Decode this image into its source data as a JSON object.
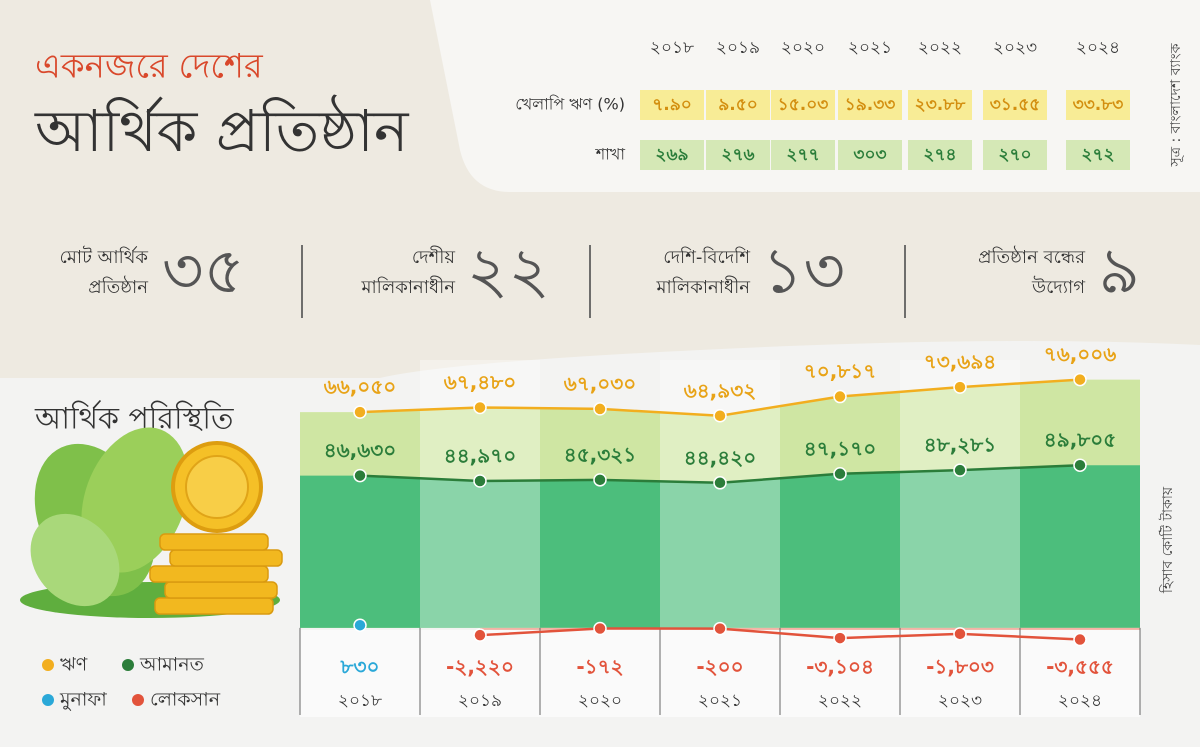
{
  "header": {
    "title_line1": "একনজরে দেশের",
    "title_line2": "আর্থিক প্রতিষ্ঠান",
    "source": "সূত্র : বাংলাদেশ ব্যাংক"
  },
  "table": {
    "columns": [
      "২০১৮",
      "২০১৯",
      "২০২০",
      "২০২১",
      "২০২২",
      "২০২৩",
      "২০২৪"
    ],
    "rows": [
      {
        "label": "খেলাপি ঋণ (%)",
        "cells": [
          "৭.৯০",
          "৯.৫০",
          "১৫.০৩",
          "১৯.৩৩",
          "২৩.৮৮",
          "৩১.৫৫",
          "৩৩.৮৩"
        ]
      },
      {
        "label": "শাখা",
        "cells": [
          "২৬৯",
          "২৭৬",
          "২৭৭",
          "৩০৩",
          "২৭৪",
          "২৭০",
          "২৭২"
        ]
      }
    ]
  },
  "stats": [
    {
      "label_lines": [
        "মোট আর্থিক",
        "প্রতিষ্ঠান"
      ],
      "value": "৩৫"
    },
    {
      "label_lines": [
        "দেশীয়",
        "মালিকানাধীন"
      ],
      "value": "২২"
    },
    {
      "label_lines": [
        "দেশি-বিদেশি",
        "মালিকানাধীন"
      ],
      "value": "১৩"
    },
    {
      "label_lines": [
        "প্রতিষ্ঠান বন্ধের",
        "উদ্যোগ"
      ],
      "value": "৯"
    }
  ],
  "chart_data": {
    "type": "area",
    "title": "আর্থিক পরিস্থিতি",
    "unit_label": "হিসাব কোটি টাকায়",
    "categories": [
      "২০১৮",
      "২০১৯",
      "২০২০",
      "২০২১",
      "২০২২",
      "২০২৩",
      "২০২৪"
    ],
    "ylim": [
      -4000,
      82000
    ],
    "series": [
      {
        "name": "ঋণ",
        "color": "#f2ae1f",
        "values": [
          66050,
          67480,
          67030,
          64932,
          70817,
          73694,
          76006
        ],
        "value_labels": [
          "৬৬,০৫০",
          "৬৭,৪৮০",
          "৬৭,০৩০",
          "৬৪,৯৩২",
          "৭০,৮১৭",
          "৭৩,৬৯৪",
          "৭৬,০০৬"
        ]
      },
      {
        "name": "আমানত",
        "color": "#2b7d3a",
        "values": [
          46630,
          44970,
          45321,
          44420,
          47170,
          48281,
          49805
        ],
        "value_labels": [
          "৪৬,৬৩০",
          "৪৪,৯৭০",
          "৪৫,৩২১",
          "৪৪,৪২০",
          "৪৭,১৭০",
          "৪৮,২৮১",
          "৪৯,৮০৫"
        ]
      },
      {
        "name": "মুনাফা",
        "color": "#2aa8d8",
        "values": [
          830,
          null,
          null,
          null,
          null,
          null,
          null
        ],
        "value_labels": [
          "৮৩০",
          null,
          null,
          null,
          null,
          null,
          null
        ]
      },
      {
        "name": "লোকসান",
        "color": "#e2533b",
        "values": [
          null,
          -2220,
          -172,
          -200,
          -3104,
          -1803,
          -3555
        ],
        "value_labels": [
          null,
          "-২,২২০",
          "-১৭২",
          "-২০০",
          "-৩,১০৪",
          "-১,৮০৩",
          "-৩,৫৫৫"
        ]
      }
    ]
  }
}
